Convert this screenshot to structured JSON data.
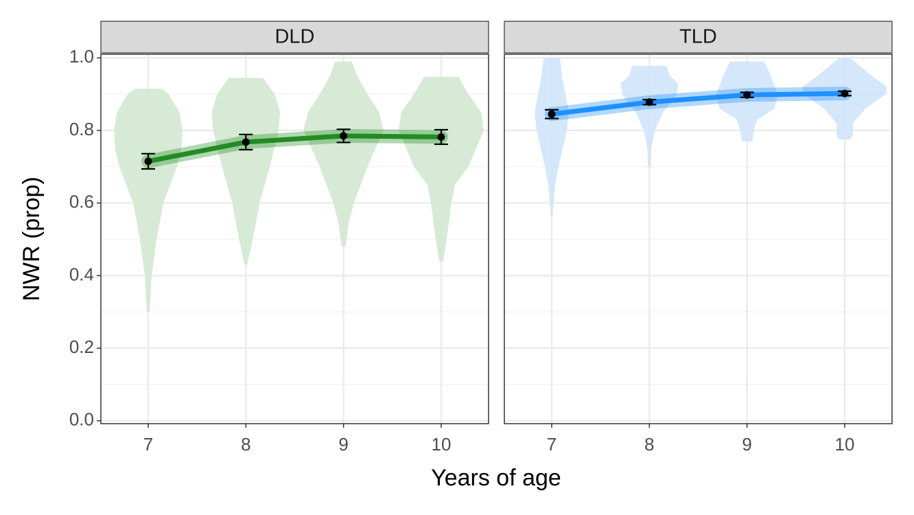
{
  "x_label": "Years of age",
  "y_label": "NWR (prop)",
  "chart_data": [
    {
      "type": "violin-line",
      "title": "DLD",
      "x": [
        7,
        8,
        9,
        10
      ],
      "values": [
        0.715,
        0.768,
        0.785,
        0.782
      ],
      "errors": [
        0.021,
        0.021,
        0.018,
        0.02
      ],
      "color": "#228b22",
      "violin_color": "#d2e8d2",
      "violins": [
        {
          "y": [
            0.3,
            0.4,
            0.5,
            0.6,
            0.65,
            0.7,
            0.75,
            0.8,
            0.85,
            0.9,
            0.915
          ],
          "half_width": [
            0.014,
            0.035,
            0.085,
            0.155,
            0.225,
            0.295,
            0.34,
            0.35,
            0.32,
            0.21,
            0.14
          ]
        },
        {
          "y": [
            0.43,
            0.5,
            0.6,
            0.7,
            0.8,
            0.85,
            0.9,
            0.945
          ],
          "half_width": [
            0.014,
            0.07,
            0.14,
            0.245,
            0.335,
            0.35,
            0.295,
            0.175
          ]
        },
        {
          "y": [
            0.48,
            0.55,
            0.6,
            0.7,
            0.8,
            0.85,
            0.9,
            0.95,
            0.99
          ],
          "half_width": [
            0.02,
            0.056,
            0.105,
            0.245,
            0.41,
            0.365,
            0.245,
            0.14,
            0.085
          ]
        },
        {
          "y": [
            0.44,
            0.5,
            0.6,
            0.65,
            0.7,
            0.8,
            0.85,
            0.9,
            0.948
          ],
          "half_width": [
            0.02,
            0.056,
            0.105,
            0.14,
            0.28,
            0.435,
            0.41,
            0.28,
            0.175
          ]
        }
      ],
      "xlim": [
        6.515,
        10.485
      ],
      "xticks": [
        7,
        8,
        9,
        10
      ],
      "ylim": [
        -0.008,
        1.01
      ],
      "yticks": [
        {
          "value": 0,
          "label": "0.0"
        },
        0.2,
        0.4,
        0.6,
        0.8,
        {
          "value": 1,
          "label": "1.0"
        }
      ],
      "yminor": [
        0.1,
        0.3,
        0.5,
        0.7,
        0.9
      ],
      "grid": true
    },
    {
      "type": "violin-line",
      "title": "TLD",
      "x": [
        7,
        8,
        9,
        10
      ],
      "values": [
        0.845,
        0.878,
        0.898,
        0.902
      ],
      "errors": [
        0.012,
        0.007,
        0.007,
        0.006
      ],
      "color": "#1e90ff",
      "violin_color": "#d0e4fa",
      "violins": [
        {
          "y": [
            0.56,
            0.65,
            0.7,
            0.8,
            0.85,
            0.9,
            0.95,
            1.0
          ],
          "half_width": [
            0.007,
            0.035,
            0.07,
            0.155,
            0.175,
            0.14,
            0.105,
            0.085
          ]
        },
        {
          "y": [
            0.7,
            0.75,
            0.8,
            0.85,
            0.9,
            0.93,
            0.95,
            0.978
          ],
          "half_width": [
            0.014,
            0.02,
            0.056,
            0.14,
            0.28,
            0.295,
            0.21,
            0.175
          ]
        },
        {
          "y": [
            0.77,
            0.8,
            0.83,
            0.86,
            0.9,
            0.95,
            0.99
          ],
          "half_width": [
            0.056,
            0.07,
            0.105,
            0.28,
            0.315,
            0.245,
            0.175
          ]
        },
        {
          "y": [
            0.775,
            0.79,
            0.82,
            0.86,
            0.9,
            0.92,
            0.95,
            1.0
          ],
          "half_width": [
            0.056,
            0.085,
            0.085,
            0.21,
            0.42,
            0.435,
            0.28,
            0.056
          ]
        }
      ],
      "xlim": [
        6.515,
        10.485
      ],
      "xticks": [
        7,
        8,
        9,
        10
      ],
      "ylim": [
        -0.008,
        1.01
      ],
      "yticks": [
        {
          "value": 0,
          "label": "0.0"
        },
        0.2,
        0.4,
        0.6,
        0.8,
        {
          "value": 1,
          "label": "1.0"
        }
      ],
      "yminor": [
        0.1,
        0.3,
        0.5,
        0.7,
        0.9
      ],
      "grid": true
    }
  ]
}
